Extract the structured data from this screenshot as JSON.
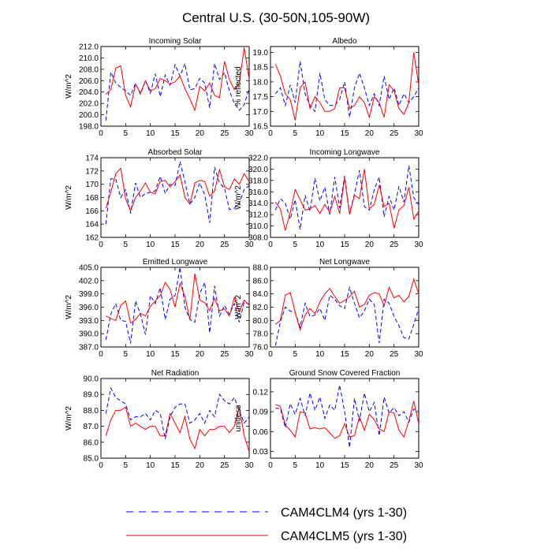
{
  "figure": {
    "title": "Central U.S. (30-50N,105-90W)"
  },
  "legend": [
    {
      "label": "CAM4CLM4 (yrs 1-30)",
      "color": "#0000ff",
      "style": "dashed"
    },
    {
      "label": "CAM4CLM5 (yrs 1-30)",
      "color": "#ff0000",
      "style": "solid"
    }
  ],
  "chart_data": [
    {
      "type": "line",
      "title": "Incoming Solar",
      "ylabel": "W/m^2",
      "xlim": [
        0,
        30
      ],
      "ylim": [
        198,
        212
      ],
      "xticks": [
        0,
        5,
        10,
        15,
        20,
        25,
        30
      ],
      "yticks": [
        198,
        200,
        202,
        204,
        206,
        208,
        210,
        212
      ],
      "ytick_labels": [
        "198.0",
        "200.0",
        "202.0",
        "204.0",
        "206.0",
        "208.0",
        "210.0",
        "212.0"
      ],
      "x": [
        1,
        2,
        3,
        4,
        5,
        6,
        7,
        8,
        9,
        10,
        11,
        12,
        13,
        14,
        15,
        16,
        17,
        18,
        19,
        20,
        21,
        22,
        23,
        24,
        25,
        26,
        27,
        28,
        29,
        30
      ],
      "series": [
        {
          "name": "CAM4CLM4 (yrs 1-30)",
          "values": [
            199.0,
            207.5,
            205.6,
            204.8,
            204.2,
            203.4,
            205.5,
            203.6,
            206.0,
            203.8,
            207.2,
            203.2,
            207.0,
            205.2,
            208.8,
            206.8,
            209.0,
            204.4,
            204.6,
            206.4,
            205.6,
            201.2,
            209.0,
            206.2,
            207.4,
            204.2,
            202.0,
            200.8,
            201.8,
            204.6
          ]
        },
        {
          "name": "CAM4CLM5 (yrs 1-30)",
          "values": [
            203.6,
            204.4,
            208.2,
            208.6,
            203.4,
            201.4,
            205.4,
            203.8,
            206.0,
            204.2,
            204.6,
            206.4,
            206.0,
            205.4,
            205.8,
            206.8,
            204.6,
            202.8,
            200.8,
            205.0,
            204.2,
            205.6,
            203.4,
            203.0,
            209.4,
            206.2,
            204.4,
            205.6,
            211.8,
            206.2
          ]
        }
      ]
    },
    {
      "type": "line",
      "title": "Albedo",
      "ylabel": "% reflected",
      "xlim": [
        0,
        30
      ],
      "ylim": [
        16.5,
        19.2
      ],
      "xticks": [
        0,
        5,
        10,
        15,
        20,
        25,
        30
      ],
      "yticks": [
        16.5,
        17.0,
        17.5,
        18.0,
        18.5,
        19.0
      ],
      "ytick_labels": [
        "16.5",
        "17.0",
        "17.5",
        "18.0",
        "18.5",
        "19.0"
      ],
      "x": [
        1,
        2,
        3,
        4,
        5,
        6,
        7,
        8,
        9,
        10,
        11,
        12,
        13,
        14,
        15,
        16,
        17,
        18,
        19,
        20,
        21,
        22,
        23,
        24,
        25,
        26,
        27,
        28,
        29,
        30
      ],
      "series": [
        {
          "name": "CAM4CLM4 (yrs 1-30)",
          "values": [
            17.6,
            17.8,
            17.2,
            17.9,
            17.3,
            18.7,
            17.6,
            17.2,
            17.0,
            18.3,
            17.4,
            17.2,
            17.2,
            17.4,
            18.0,
            16.8,
            17.8,
            18.3,
            17.8,
            17.2,
            17.6,
            17.2,
            18.2,
            17.4,
            17.8,
            17.2,
            17.6,
            17.3,
            17.5,
            17.8
          ]
        },
        {
          "name": "CAM4CLM5 (yrs 1-30)",
          "values": [
            18.6,
            18.2,
            17.6,
            17.4,
            16.7,
            17.8,
            18.0,
            17.1,
            17.5,
            17.3,
            17.0,
            17.0,
            17.1,
            17.8,
            17.8,
            17.1,
            17.2,
            17.5,
            17.3,
            16.8,
            17.5,
            17.3,
            16.8,
            17.9,
            17.7,
            17.1,
            16.9,
            17.3,
            19.0,
            17.9
          ]
        }
      ]
    },
    {
      "type": "line",
      "title": "Absorbed Solar",
      "ylabel": "W/m^2",
      "xlim": [
        0,
        30
      ],
      "ylim": [
        162,
        174
      ],
      "xticks": [
        0,
        5,
        10,
        15,
        20,
        25,
        30
      ],
      "yticks": [
        162,
        164,
        166,
        168,
        170,
        172,
        174
      ],
      "ytick_labels": [
        "162",
        "164",
        "166",
        "168",
        "170",
        "172",
        "174"
      ],
      "x": [
        1,
        2,
        3,
        4,
        5,
        6,
        7,
        8,
        9,
        10,
        11,
        12,
        13,
        14,
        15,
        16,
        17,
        18,
        19,
        20,
        21,
        22,
        23,
        24,
        25,
        26,
        27,
        28,
        29,
        30
      ],
      "series": [
        {
          "name": "CAM4CLM4 (yrs 1-30)",
          "values": [
            164.0,
            170.8,
            170.8,
            168.0,
            169.2,
            165.6,
            170.2,
            168.0,
            168.6,
            168.8,
            169.0,
            171.2,
            168.6,
            170.0,
            169.8,
            173.4,
            170.4,
            167.0,
            168.0,
            170.2,
            168.4,
            164.2,
            172.6,
            170.2,
            169.4,
            166.2,
            166.4,
            167.2,
            169.2,
            169.8
          ]
        },
        {
          "name": "CAM4CLM5 (yrs 1-30)",
          "values": [
            166.4,
            168.8,
            171.6,
            172.4,
            167.8,
            166.0,
            168.0,
            169.0,
            170.2,
            168.8,
            168.6,
            170.4,
            170.6,
            169.6,
            170.4,
            171.4,
            168.0,
            167.0,
            170.2,
            170.6,
            170.4,
            168.2,
            169.0,
            172.2,
            169.6,
            169.2,
            170.8,
            170.0,
            171.6,
            170.4
          ]
        }
      ]
    },
    {
      "type": "line",
      "title": "Incoming Longwave",
      "ylabel": "W/m^2",
      "xlim": [
        0,
        30
      ],
      "ylim": [
        308,
        322
      ],
      "xticks": [
        0,
        5,
        10,
        15,
        20,
        25,
        30
      ],
      "yticks": [
        308,
        310,
        312,
        314,
        316,
        318,
        320,
        322
      ],
      "ytick_labels": [
        "308.0",
        "310.0",
        "312.0",
        "314.0",
        "316.0",
        "318.0",
        "320.0",
        "322.0"
      ],
      "x": [
        1,
        2,
        3,
        4,
        5,
        6,
        7,
        8,
        9,
        10,
        11,
        12,
        13,
        14,
        15,
        16,
        17,
        18,
        19,
        20,
        21,
        22,
        23,
        24,
        25,
        26,
        27,
        28,
        29,
        30
      ],
      "series": [
        {
          "name": "CAM4CLM4 (yrs 1-30)",
          "values": [
            312.8,
            314.8,
            314.0,
            311.2,
            314.6,
            309.4,
            315.4,
            312.6,
            318.4,
            314.4,
            316.8,
            312.0,
            318.6,
            313.2,
            318.8,
            312.2,
            315.6,
            319.8,
            313.4,
            312.8,
            316.4,
            318.6,
            311.6,
            315.2,
            312.8,
            317.0,
            314.2,
            320.6,
            315.0,
            313.8
          ]
        },
        {
          "name": "CAM4CLM5 (yrs 1-30)",
          "values": [
            314.2,
            313.0,
            309.2,
            312.4,
            316.4,
            314.6,
            312.8,
            313.0,
            313.6,
            312.2,
            313.8,
            312.4,
            315.2,
            312.2,
            318.4,
            312.0,
            315.4,
            314.8,
            320.0,
            313.0,
            313.8,
            317.2,
            313.4,
            314.0,
            309.6,
            312.8,
            313.6,
            316.8,
            311.2,
            312.6
          ]
        }
      ]
    },
    {
      "type": "line",
      "title": "Emitted Longwave",
      "ylabel": "W/m^2",
      "xlim": [
        0,
        30
      ],
      "ylim": [
        387,
        405
      ],
      "xticks": [
        0,
        5,
        10,
        15,
        20,
        25,
        30
      ],
      "yticks": [
        387,
        390,
        393,
        396,
        399,
        402,
        405
      ],
      "ytick_labels": [
        "387.0",
        "390.0",
        "393.0",
        "396.0",
        "399.0",
        "402.0",
        "405.0"
      ],
      "x": [
        1,
        2,
        3,
        4,
        5,
        6,
        7,
        8,
        9,
        10,
        11,
        12,
        13,
        14,
        15,
        16,
        17,
        18,
        19,
        20,
        21,
        22,
        23,
        24,
        25,
        26,
        27,
        28,
        29,
        30
      ],
      "series": [
        {
          "name": "CAM4CLM4 (yrs 1-30)",
          "values": [
            388.6,
            394.4,
            396.8,
            393.0,
            392.8,
            387.8,
            397.4,
            394.4,
            389.8,
            398.6,
            396.8,
            400.4,
            393.2,
            397.8,
            398.6,
            405.0,
            396.0,
            393.2,
            392.6,
            399.0,
            401.6,
            390.2,
            400.8,
            394.0,
            396.4,
            394.4,
            396.8,
            392.6,
            397.2,
            396.6
          ]
        },
        {
          "name": "CAM4CLM5 (yrs 1-30)",
          "values": [
            394.0,
            393.4,
            393.0,
            396.4,
            397.4,
            392.4,
            393.2,
            394.6,
            394.0,
            396.2,
            397.4,
            398.6,
            401.6,
            400.0,
            396.0,
            401.4,
            398.4,
            393.2,
            403.6,
            397.6,
            397.0,
            395.2,
            398.0,
            395.2,
            395.6,
            394.0,
            398.2,
            395.0,
            397.6,
            396.4
          ]
        }
      ]
    },
    {
      "type": "line",
      "title": "Net Longwave",
      "ylabel": "W/m^2",
      "xlim": [
        0,
        30
      ],
      "ylim": [
        76,
        88
      ],
      "xticks": [
        0,
        5,
        10,
        15,
        20,
        25,
        30
      ],
      "yticks": [
        76,
        78,
        80,
        82,
        84,
        86,
        88
      ],
      "ytick_labels": [
        "76.0",
        "78.0",
        "80.0",
        "82.0",
        "84.0",
        "86.0",
        "88.0"
      ],
      "x": [
        1,
        2,
        3,
        4,
        5,
        6,
        7,
        8,
        9,
        10,
        11,
        12,
        13,
        14,
        15,
        16,
        17,
        18,
        19,
        20,
        21,
        22,
        23,
        24,
        25,
        26,
        27,
        28,
        29,
        30
      ],
      "series": [
        {
          "name": "CAM4CLM4 (yrs 1-30)",
          "values": [
            76.2,
            79.8,
            82.0,
            81.4,
            81.2,
            79.0,
            82.6,
            80.6,
            80.8,
            81.8,
            80.0,
            83.8,
            83.2,
            82.2,
            81.8,
            85.0,
            82.6,
            80.4,
            81.4,
            83.2,
            82.4,
            76.6,
            83.2,
            82.6,
            80.6,
            79.2,
            77.4,
            77.2,
            79.4,
            81.8
          ]
        },
        {
          "name": "CAM4CLM5 (yrs 1-30)",
          "values": [
            79.4,
            80.0,
            83.8,
            84.2,
            81.2,
            78.6,
            80.8,
            81.8,
            81.0,
            82.8,
            84.0,
            84.8,
            83.6,
            82.6,
            83.0,
            83.6,
            84.4,
            82.0,
            82.4,
            83.8,
            84.2,
            84.0,
            82.2,
            85.0,
            83.4,
            83.8,
            82.8,
            83.6,
            86.2,
            84.0
          ]
        }
      ]
    },
    {
      "type": "line",
      "title": "Net Radiation",
      "ylabel": "W/m^2",
      "xlim": [
        0,
        30
      ],
      "ylim": [
        85,
        90
      ],
      "xticks": [
        0,
        5,
        10,
        15,
        20,
        25,
        30
      ],
      "yticks": [
        85,
        86,
        87,
        88,
        89,
        90
      ],
      "ytick_labels": [
        "85.0",
        "86.0",
        "87.0",
        "88.0",
        "89.0",
        "90.0"
      ],
      "x": [
        1,
        2,
        3,
        4,
        5,
        6,
        7,
        8,
        9,
        10,
        11,
        12,
        13,
        14,
        15,
        16,
        17,
        18,
        19,
        20,
        21,
        22,
        23,
        24,
        25,
        26,
        27,
        28,
        29,
        30
      ],
      "series": [
        {
          "name": "CAM4CLM4 (yrs 1-30)",
          "values": [
            87.8,
            89.4,
            88.8,
            88.6,
            88.4,
            87.4,
            87.6,
            87.6,
            87.8,
            87.4,
            88.0,
            87.8,
            86.2,
            87.6,
            88.2,
            88.4,
            88.4,
            87.2,
            87.4,
            87.8,
            87.2,
            88.0,
            87.6,
            89.0,
            88.6,
            88.4,
            88.8,
            88.0,
            87.2,
            87.6
          ]
        },
        {
          "name": "CAM4CLM5 (yrs 1-30)",
          "values": [
            86.4,
            87.4,
            88.0,
            88.0,
            88.2,
            87.0,
            87.2,
            87.0,
            86.8,
            87.0,
            87.0,
            86.4,
            86.4,
            87.8,
            87.2,
            86.6,
            87.6,
            86.2,
            85.6,
            86.8,
            86.4,
            86.8,
            86.8,
            87.0,
            87.0,
            86.6,
            87.0,
            88.2,
            86.4,
            85.4
          ]
        }
      ]
    },
    {
      "type": "line",
      "title": "Ground Snow Covered Fraction",
      "ylabel": "unitless",
      "xlim": [
        0,
        30
      ],
      "ylim": [
        0.02,
        0.14
      ],
      "xticks": [
        0,
        5,
        10,
        15,
        20,
        25,
        30
      ],
      "yticks": [
        0.03,
        0.06,
        0.09,
        0.12
      ],
      "ytick_labels": [
        "0.03",
        "0.06",
        "0.09",
        "0.12"
      ],
      "x": [
        1,
        2,
        3,
        4,
        5,
        6,
        7,
        8,
        9,
        10,
        11,
        12,
        13,
        14,
        15,
        16,
        17,
        18,
        19,
        20,
        21,
        22,
        23,
        24,
        25,
        26,
        27,
        28,
        29,
        30
      ],
      "series": [
        {
          "name": "CAM4CLM4 (yrs 1-30)",
          "values": [
            0.095,
            0.095,
            0.066,
            0.102,
            0.086,
            0.11,
            0.084,
            0.118,
            0.092,
            0.112,
            0.08,
            0.1,
            0.092,
            0.13,
            0.09,
            0.036,
            0.11,
            0.076,
            0.118,
            0.09,
            0.104,
            0.054,
            0.112,
            0.088,
            0.096,
            0.084,
            0.09,
            0.074,
            0.094,
            0.092
          ]
        },
        {
          "name": "CAM4CLM5 (yrs 1-30)",
          "values": [
            0.101,
            0.098,
            0.07,
            0.062,
            0.052,
            0.09,
            0.088,
            0.064,
            0.066,
            0.064,
            0.066,
            0.058,
            0.05,
            0.054,
            0.072,
            0.052,
            0.054,
            0.082,
            0.062,
            0.086,
            0.078,
            0.064,
            0.06,
            0.09,
            0.088,
            0.062,
            0.052,
            0.076,
            0.106,
            0.072
          ]
        }
      ]
    }
  ]
}
